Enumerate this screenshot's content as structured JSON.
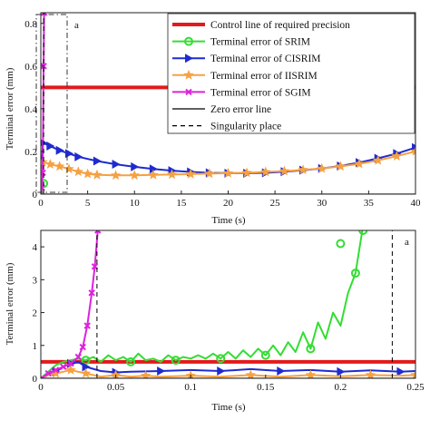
{
  "chart_data": [
    {
      "type": "line",
      "xlabel": "Time (s)",
      "ylabel": "Terminal error (mm)",
      "xlim": [
        0,
        40
      ],
      "ylim": [
        0,
        0.85
      ],
      "x_ticks": [
        "0",
        "5",
        "10",
        "15",
        "20",
        "25",
        "30",
        "35",
        "40"
      ],
      "y_ticks": [
        "0",
        "0.2",
        "0.4",
        "0.6",
        "0.8"
      ],
      "annotation": "a",
      "legend_position": "top-right",
      "series": [
        {
          "name": "Control line of required precision",
          "color": "#e31a1c",
          "style": "thick-line",
          "x": [
            0,
            40
          ],
          "y": [
            0.5,
            0.5
          ]
        },
        {
          "name": "Terminal error of SRIM",
          "color": "#33dd33",
          "style": "line-circle",
          "x": [
            0,
            0.3
          ],
          "y": [
            0.0,
            0.05
          ]
        },
        {
          "name": "Terminal error of CISRIM",
          "color": "#1f2bd0",
          "style": "line-triangle",
          "x": [
            0,
            0.2,
            1,
            2,
            3,
            4,
            6,
            8,
            10,
            12,
            14,
            16,
            18,
            20,
            22,
            24,
            26,
            28,
            30,
            32,
            34,
            36,
            38,
            40
          ],
          "y": [
            0.0,
            0.24,
            0.225,
            0.205,
            0.19,
            0.175,
            0.155,
            0.14,
            0.128,
            0.118,
            0.11,
            0.104,
            0.1,
            0.098,
            0.098,
            0.1,
            0.105,
            0.112,
            0.12,
            0.132,
            0.148,
            0.168,
            0.19,
            0.218
          ]
        },
        {
          "name": "Terminal error of IISRIM",
          "color": "#f5a142",
          "style": "line-star",
          "x": [
            0,
            0.2,
            1,
            2,
            3,
            4,
            5,
            6,
            8,
            10,
            12,
            14,
            16,
            18,
            20,
            22,
            24,
            26,
            28,
            30,
            32,
            34,
            36,
            38,
            40
          ],
          "y": [
            0.0,
            0.15,
            0.14,
            0.13,
            0.118,
            0.105,
            0.095,
            0.09,
            0.088,
            0.088,
            0.09,
            0.092,
            0.094,
            0.096,
            0.098,
            0.1,
            0.104,
            0.108,
            0.114,
            0.12,
            0.13,
            0.142,
            0.158,
            0.178,
            0.2
          ]
        },
        {
          "name": "Terminal error of SGIM",
          "color": "#dd22dd",
          "style": "line-x",
          "x": [
            0,
            0.1,
            0.2,
            0.3,
            0.35
          ],
          "y": [
            0.0,
            0.03,
            0.1,
            0.6,
            0.85
          ]
        },
        {
          "name": "Zero error line",
          "color": "#000000",
          "style": "thin-line",
          "x": [
            0,
            40
          ],
          "y": [
            0,
            0
          ]
        },
        {
          "name": "Singularity place",
          "color": "#000000",
          "style": "dashed",
          "x": [
            0.3,
            0.3
          ],
          "y": [
            0,
            0.85
          ]
        }
      ]
    },
    {
      "type": "line",
      "xlabel": "Time (s)",
      "ylabel": "Terminal error (mm)",
      "xlim": [
        0,
        0.25
      ],
      "ylim": [
        0,
        4.5
      ],
      "x_ticks": [
        "0",
        "0.05",
        "0.1",
        "0.15",
        "0.2",
        "0.25"
      ],
      "y_ticks": [
        "0",
        "1",
        "2",
        "3",
        "4"
      ],
      "annotation": "a",
      "series": [
        {
          "name": "Control line of required precision",
          "color": "#e31a1c",
          "x": [
            0,
            0.25
          ],
          "y": [
            0.5,
            0.5
          ]
        },
        {
          "name": "Terminal error of SRIM",
          "color": "#33dd33",
          "x": [
            0,
            0.005,
            0.01,
            0.015,
            0.02,
            0.025,
            0.03,
            0.035,
            0.04,
            0.045,
            0.05,
            0.055,
            0.06,
            0.065,
            0.07,
            0.075,
            0.08,
            0.085,
            0.09,
            0.095,
            0.1,
            0.105,
            0.11,
            0.115,
            0.12,
            0.125,
            0.13,
            0.135,
            0.14,
            0.145,
            0.15,
            0.155,
            0.16,
            0.165,
            0.17,
            0.175,
            0.18,
            0.185,
            0.19,
            0.195,
            0.2,
            0.205,
            0.21,
            0.2145
          ],
          "y": [
            0.0,
            0.2,
            0.4,
            0.5,
            0.55,
            0.6,
            0.55,
            0.65,
            0.5,
            0.7,
            0.55,
            0.65,
            0.5,
            0.75,
            0.55,
            0.6,
            0.5,
            0.7,
            0.55,
            0.65,
            0.6,
            0.7,
            0.6,
            0.75,
            0.6,
            0.8,
            0.6,
            0.85,
            0.65,
            0.9,
            0.7,
            1.0,
            0.7,
            1.1,
            0.8,
            1.4,
            0.9,
            1.7,
            1.2,
            2.0,
            1.6,
            2.6,
            3.2,
            4.5
          ]
        },
        {
          "name": "Terminal error of SRIM (marker)",
          "color": "#33dd33",
          "x": [
            0.2,
            0.215
          ],
          "y": [
            4.1,
            4.5
          ]
        },
        {
          "name": "Terminal error of CISRIM",
          "color": "#1f2bd0",
          "x": [
            0,
            0.005,
            0.01,
            0.015,
            0.02,
            0.025,
            0.03,
            0.04,
            0.05,
            0.06,
            0.08,
            0.1,
            0.12,
            0.14,
            0.16,
            0.18,
            0.2,
            0.22,
            0.24,
            0.25
          ],
          "y": [
            0.0,
            0.1,
            0.2,
            0.35,
            0.45,
            0.5,
            0.35,
            0.22,
            0.18,
            0.2,
            0.22,
            0.25,
            0.22,
            0.28,
            0.22,
            0.25,
            0.2,
            0.24,
            0.2,
            0.22
          ]
        },
        {
          "name": "Terminal error of IISRIM",
          "color": "#f5a142",
          "x": [
            0,
            0.005,
            0.01,
            0.015,
            0.02,
            0.025,
            0.03,
            0.04,
            0.05,
            0.06,
            0.07,
            0.08,
            0.1,
            0.12,
            0.14,
            0.16,
            0.18,
            0.2,
            0.22,
            0.24,
            0.25
          ],
          "y": [
            0.0,
            0.1,
            0.15,
            0.2,
            0.25,
            0.2,
            0.15,
            0.05,
            0.1,
            0.05,
            0.08,
            0.05,
            0.08,
            0.05,
            0.1,
            0.05,
            0.1,
            0.06,
            0.1,
            0.08,
            0.1
          ]
        },
        {
          "name": "Terminal error of SGIM",
          "color": "#dd22dd",
          "x": [
            0,
            0.005,
            0.01,
            0.015,
            0.02,
            0.025,
            0.028,
            0.031,
            0.034,
            0.036,
            0.038
          ],
          "y": [
            0.0,
            0.15,
            0.25,
            0.35,
            0.45,
            0.65,
            0.95,
            1.6,
            2.6,
            3.4,
            4.5
          ]
        },
        {
          "name": "Zero error line",
          "color": "#000000",
          "x": [
            0,
            0.25
          ],
          "y": [
            0,
            0
          ]
        },
        {
          "name": "Singularity place",
          "color": "#000000",
          "x": [
            0.0375,
            0.0375
          ],
          "y": [
            0,
            4.5
          ]
        },
        {
          "name": "Singularity place",
          "color": "#000000",
          "x": [
            0.2345,
            0.2345
          ],
          "y": [
            0,
            4.5
          ]
        }
      ]
    }
  ]
}
